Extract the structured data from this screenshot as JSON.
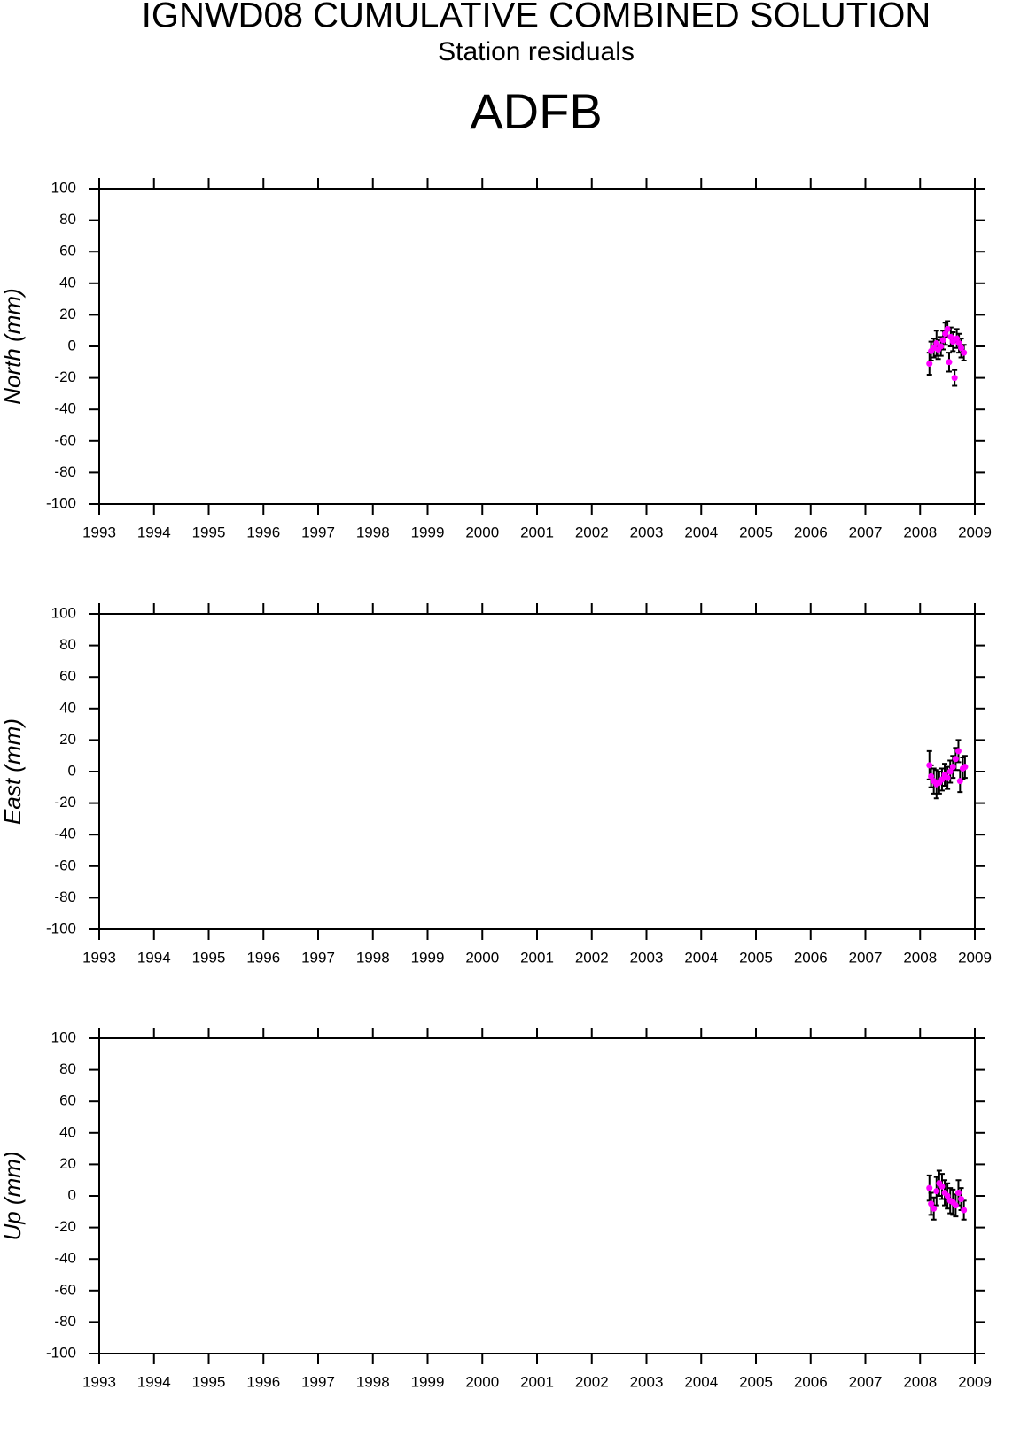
{
  "header": {
    "title": "IGNWD08 CUMULATIVE COMBINED SOLUTION",
    "subtitle": "Station residuals",
    "station": "ADFB"
  },
  "chart_data": [
    {
      "type": "scatter",
      "ylabel": "North (mm)",
      "color": "#ff00ff",
      "error_color": "#000000",
      "x": [
        2008.17,
        2008.2,
        2008.25,
        2008.3,
        2008.33,
        2008.38,
        2008.42,
        2008.46,
        2008.5,
        2008.53,
        2008.56,
        2008.6,
        2008.63,
        2008.67,
        2008.71,
        2008.75,
        2008.8
      ],
      "values": [
        -11,
        -3,
        -1,
        2,
        -2,
        0,
        4,
        8,
        11,
        -10,
        6,
        3,
        -20,
        5,
        2,
        -1,
        -4
      ],
      "errors": [
        7,
        6,
        6,
        8,
        6,
        6,
        6,
        7,
        5,
        6,
        6,
        6,
        5,
        6,
        6,
        6,
        5
      ],
      "xlim": [
        1993,
        2009
      ],
      "xticks": [
        1993,
        1994,
        1995,
        1996,
        1997,
        1998,
        1999,
        2000,
        2001,
        2002,
        2003,
        2004,
        2005,
        2006,
        2007,
        2008,
        2009
      ],
      "ylim": [
        -100,
        100
      ],
      "yticks": [
        -100,
        -80,
        -60,
        -40,
        -20,
        0,
        20,
        40,
        60,
        80,
        100
      ]
    },
    {
      "type": "scatter",
      "ylabel": "East (mm)",
      "color": "#ff00ff",
      "error_color": "#000000",
      "x": [
        2008.17,
        2008.2,
        2008.25,
        2008.3,
        2008.35,
        2008.4,
        2008.45,
        2008.5,
        2008.55,
        2008.6,
        2008.65,
        2008.7,
        2008.73,
        2008.78,
        2008.82
      ],
      "values": [
        4,
        -3,
        -6,
        -8,
        -7,
        -5,
        -2,
        -4,
        0,
        3,
        8,
        13,
        -6,
        2,
        3
      ],
      "errors": [
        9,
        7,
        8,
        9,
        7,
        7,
        7,
        7,
        7,
        7,
        7,
        7,
        7,
        7,
        7
      ],
      "xlim": [
        1993,
        2009
      ],
      "xticks": [
        1993,
        1994,
        1995,
        1996,
        1997,
        1998,
        1999,
        2000,
        2001,
        2002,
        2003,
        2004,
        2005,
        2006,
        2007,
        2008,
        2009
      ],
      "ylim": [
        -100,
        100
      ],
      "yticks": [
        -100,
        -80,
        -60,
        -40,
        -20,
        0,
        20,
        40,
        60,
        80,
        100
      ]
    },
    {
      "type": "scatter",
      "ylabel": "Up (mm)",
      "color": "#ff00ff",
      "error_color": "#000000",
      "x": [
        2008.17,
        2008.2,
        2008.25,
        2008.3,
        2008.35,
        2008.4,
        2008.45,
        2008.5,
        2008.55,
        2008.6,
        2008.65,
        2008.7,
        2008.75,
        2008.8
      ],
      "values": [
        5,
        -5,
        -8,
        3,
        8,
        6,
        2,
        0,
        -3,
        -4,
        -6,
        2,
        -2,
        -9
      ],
      "errors": [
        8,
        7,
        7,
        9,
        8,
        8,
        8,
        8,
        8,
        8,
        7,
        8,
        7,
        6
      ],
      "xlim": [
        1993,
        2009
      ],
      "xticks": [
        1993,
        1994,
        1995,
        1996,
        1997,
        1998,
        1999,
        2000,
        2001,
        2002,
        2003,
        2004,
        2005,
        2006,
        2007,
        2008,
        2009
      ],
      "ylim": [
        -100,
        100
      ],
      "yticks": [
        -100,
        -80,
        -60,
        -40,
        -20,
        0,
        20,
        40,
        60,
        80,
        100
      ]
    }
  ]
}
